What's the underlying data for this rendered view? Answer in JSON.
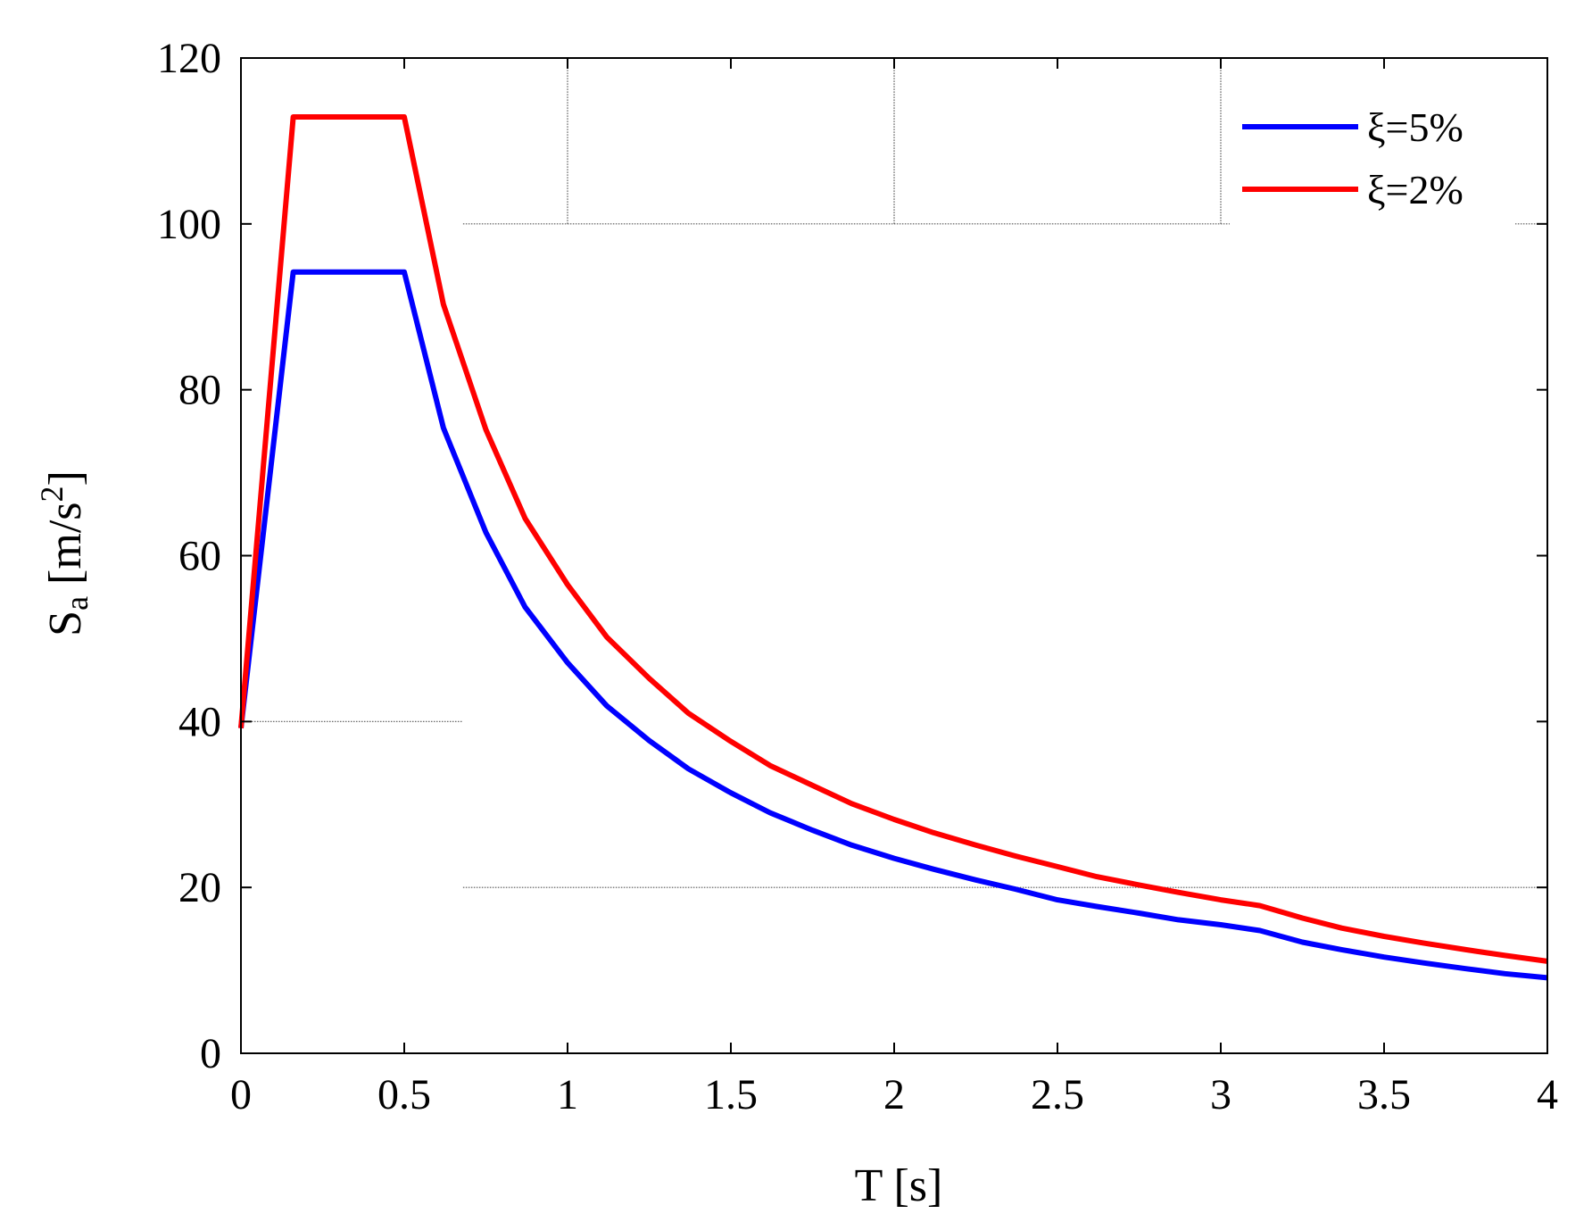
{
  "chart_data": {
    "type": "line",
    "title": "",
    "xlabel": "T [s]",
    "ylabel": {
      "base": "S",
      "sub": "a",
      "unit_open": " [m/s",
      "sup": "2",
      "unit_close": "]"
    },
    "xlim": [
      0,
      4
    ],
    "ylim": [
      0,
      120
    ],
    "xticks": [
      0,
      0.5,
      1,
      1.5,
      2,
      2.5,
      3,
      3.5,
      4
    ],
    "xtick_labels": [
      "0",
      "0.5",
      "1",
      "1.5",
      "2",
      "2.5",
      "3",
      "3.5",
      "4"
    ],
    "yticks": [
      0,
      20,
      40,
      60,
      80,
      100,
      120
    ],
    "ytick_labels": [
      "0",
      "20",
      "40",
      "60",
      "80",
      "100",
      "120"
    ],
    "grid": "partial dotted",
    "legend_position": "top-right",
    "series": [
      {
        "name": "ξ=5%",
        "color": "#0000ff",
        "x": [
          0,
          0.16,
          0.5,
          0.62,
          0.75,
          0.87,
          1.0,
          1.12,
          1.25,
          1.37,
          1.5,
          1.62,
          1.75,
          1.87,
          2.0,
          2.12,
          2.25,
          2.37,
          2.5,
          2.62,
          2.75,
          2.87,
          3.0,
          3.12,
          3.25,
          3.37,
          3.5,
          3.62,
          3.75,
          3.87,
          4.0
        ],
        "values": [
          39.2,
          94.2,
          94.2,
          75.4,
          62.8,
          53.8,
          47.1,
          41.9,
          37.7,
          34.3,
          31.4,
          29.0,
          26.9,
          25.1,
          23.5,
          22.2,
          20.9,
          19.8,
          18.5,
          17.7,
          16.9,
          16.1,
          15.5,
          14.8,
          13.4,
          12.5,
          11.6,
          10.9,
          10.2,
          9.6,
          9.1
        ]
      },
      {
        "name": "ξ=2%",
        "color": "#ff0000",
        "x": [
          0,
          0.16,
          0.5,
          0.62,
          0.75,
          0.87,
          1.0,
          1.12,
          1.25,
          1.37,
          1.5,
          1.62,
          1.75,
          1.87,
          2.0,
          2.12,
          2.25,
          2.37,
          2.5,
          2.62,
          2.75,
          2.87,
          3.0,
          3.12,
          3.25,
          3.37,
          3.5,
          3.62,
          3.75,
          3.87,
          4.0
        ],
        "values": [
          39.2,
          112.9,
          112.9,
          90.3,
          75.2,
          64.5,
          56.5,
          50.2,
          45.2,
          41.0,
          37.6,
          34.7,
          32.3,
          30.1,
          28.2,
          26.6,
          25.1,
          23.8,
          22.5,
          21.3,
          20.3,
          19.4,
          18.5,
          17.8,
          16.3,
          15.1,
          14.1,
          13.3,
          12.5,
          11.8,
          11.1
        ]
      }
    ]
  }
}
